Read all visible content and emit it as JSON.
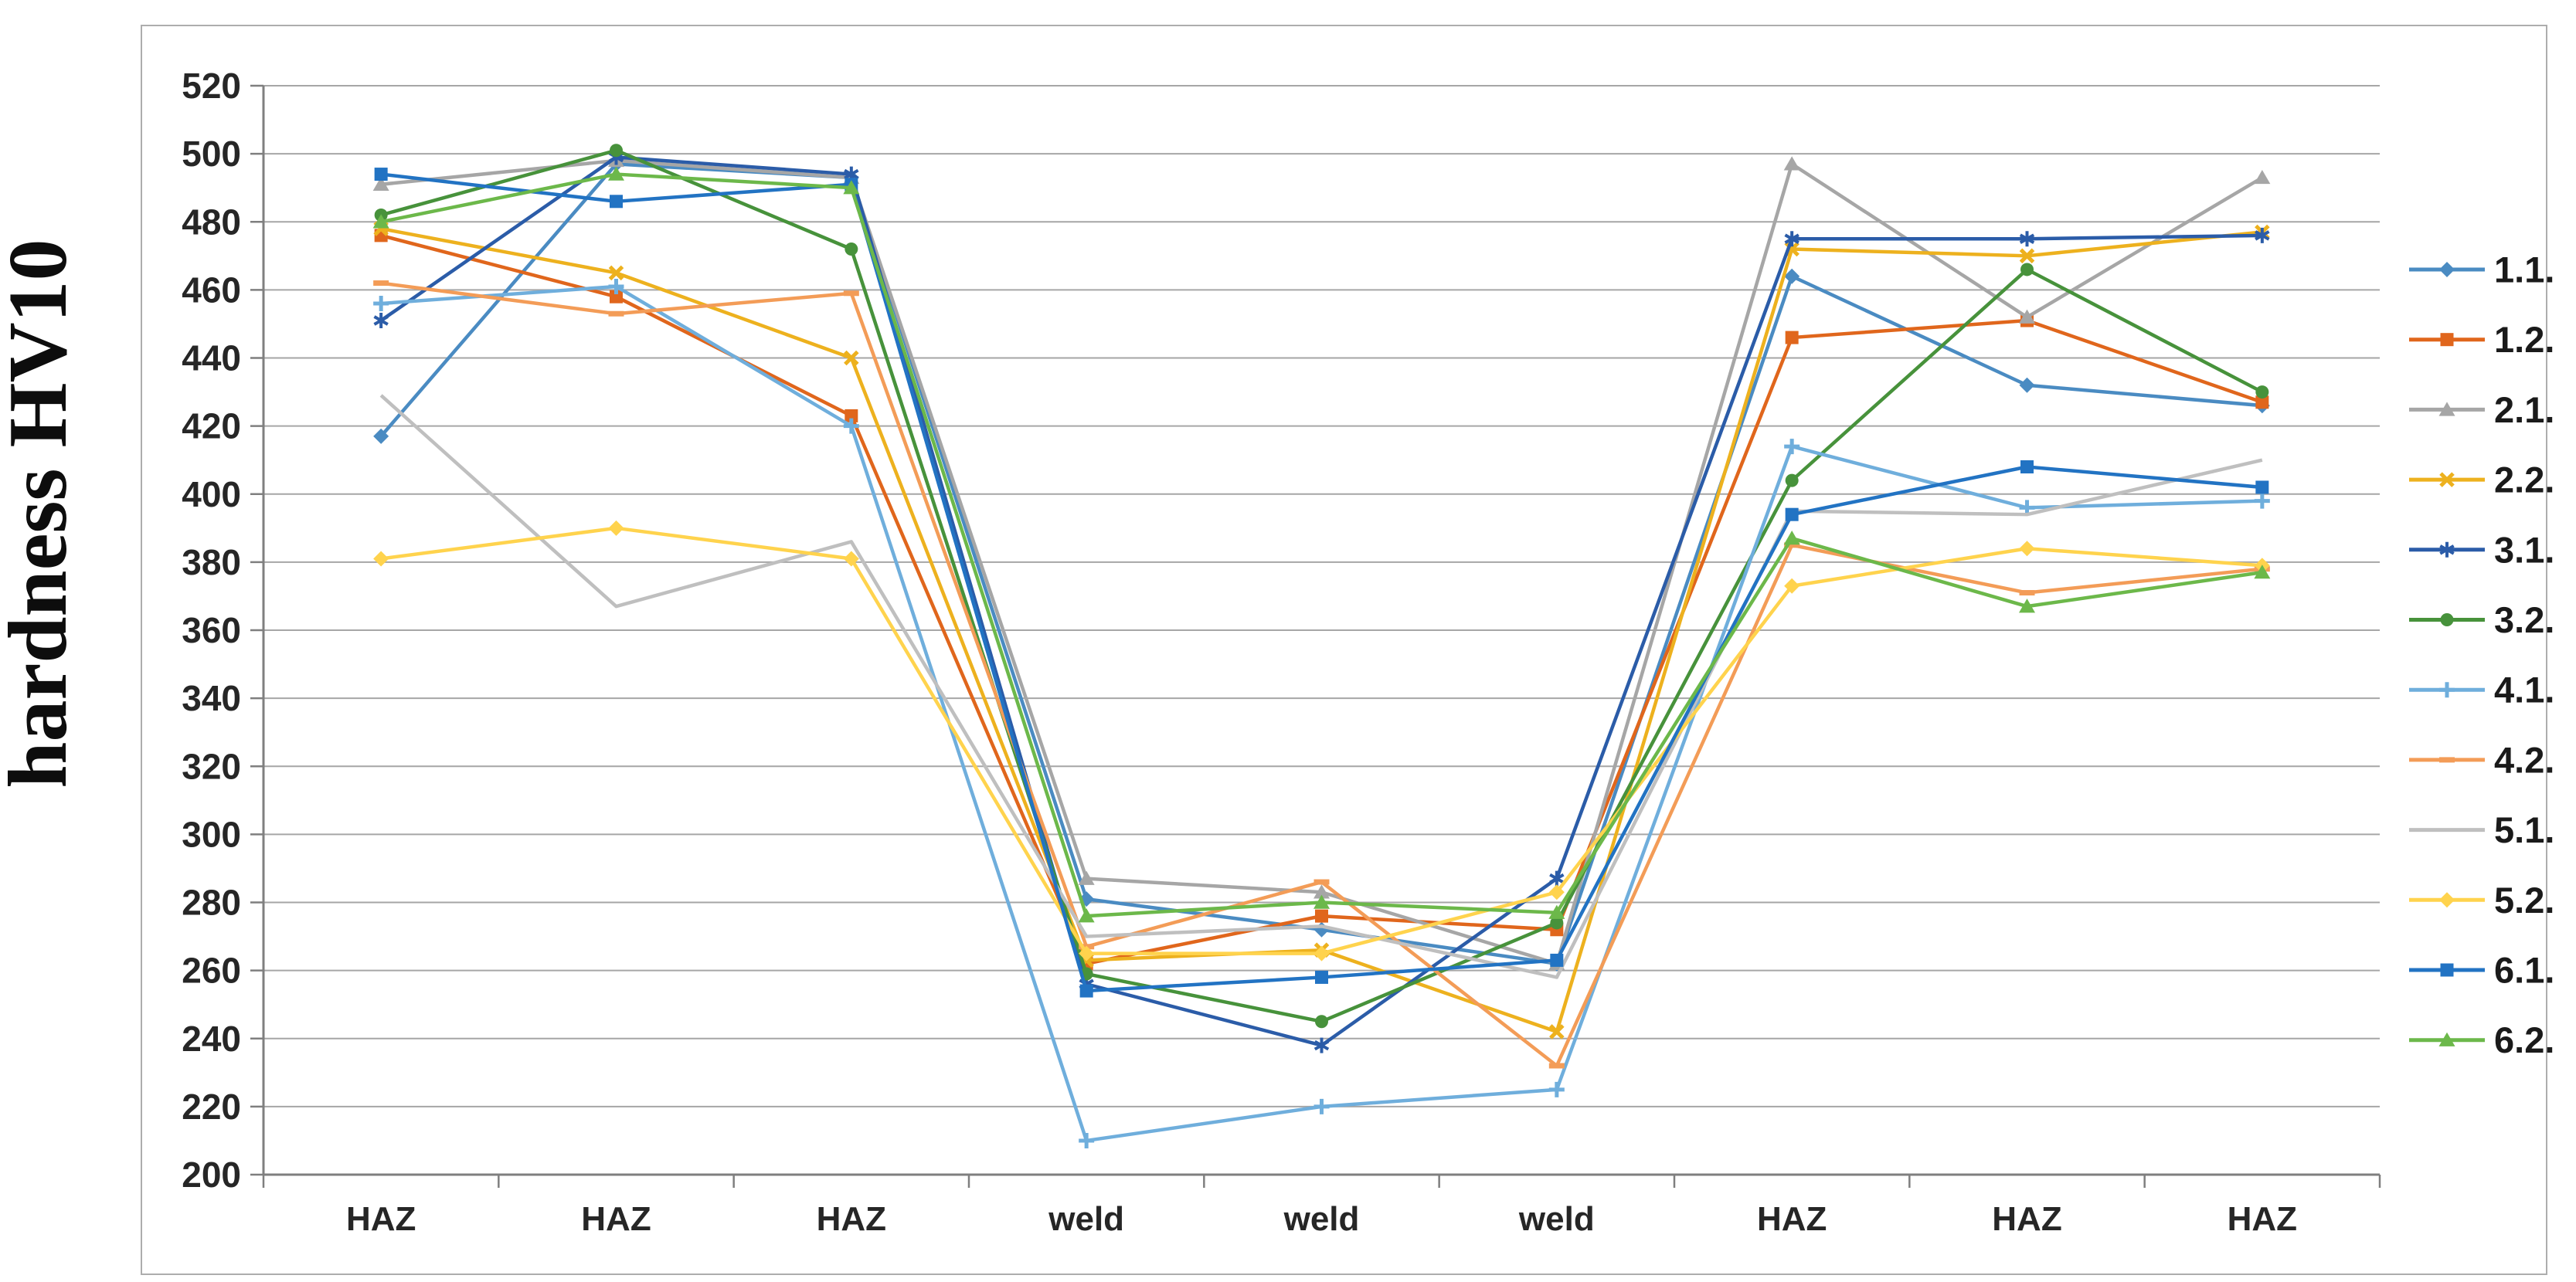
{
  "chart_data": {
    "type": "line",
    "title": "",
    "xlabel": "",
    "ylabel": "hardness HV10",
    "ylim": [
      200,
      520
    ],
    "ytick_step": 20,
    "ytick_labels": [
      "520",
      "500",
      "480",
      "460",
      "440",
      "420",
      "400",
      "380",
      "360",
      "340",
      "320",
      "300",
      "280",
      "260",
      "240",
      "220",
      "200"
    ],
    "categories": [
      "HAZ",
      "HAZ",
      "HAZ",
      "weld",
      "weld",
      "weld",
      "HAZ",
      "HAZ",
      "HAZ"
    ],
    "grid": "horizontal",
    "legend_position": "right",
    "plot_border_color": "#ADADAD",
    "gridline_color": "#A6A6A6",
    "axis_color": "#7F7F7F",
    "series": [
      {
        "name": "1.1.",
        "color": "#4A8BC2",
        "marker": "diamond",
        "values": [
          417,
          497,
          493,
          281,
          272,
          262,
          464,
          432,
          426
        ]
      },
      {
        "name": "1.2.",
        "color": "#E0661C",
        "marker": "square",
        "values": [
          476,
          458,
          423,
          262,
          276,
          272,
          446,
          451,
          427
        ]
      },
      {
        "name": "2.1.",
        "color": "#A6A6A6",
        "marker": "triangle",
        "values": [
          491,
          498,
          493,
          287,
          283,
          262,
          497,
          452,
          493
        ]
      },
      {
        "name": "2.2.",
        "color": "#EDB11E",
        "marker": "x",
        "values": [
          478,
          465,
          440,
          263,
          266,
          242,
          472,
          470,
          477
        ]
      },
      {
        "name": "3.1.",
        "color": "#2B5CA8",
        "marker": "asterisk",
        "values": [
          451,
          499,
          494,
          256,
          238,
          287,
          475,
          475,
          476
        ]
      },
      {
        "name": "3.2.",
        "color": "#47923B",
        "marker": "circle",
        "values": [
          482,
          501,
          472,
          259,
          245,
          274,
          404,
          466,
          430
        ]
      },
      {
        "name": "4.1.",
        "color": "#6FAEDC",
        "marker": "plus",
        "values": [
          456,
          461,
          420,
          210,
          220,
          225,
          414,
          396,
          398
        ]
      },
      {
        "name": "4.2.",
        "color": "#F39C57",
        "marker": "dash",
        "values": [
          462,
          453,
          459,
          267,
          286,
          232,
          385,
          371,
          378
        ]
      },
      {
        "name": "5.1.",
        "color": "#BFBFBF",
        "marker": "none",
        "values": [
          429,
          367,
          386,
          270,
          273,
          258,
          395,
          394,
          410
        ]
      },
      {
        "name": "5.2.",
        "color": "#FFD34D",
        "marker": "diamond",
        "values": [
          381,
          390,
          381,
          265,
          265,
          283,
          373,
          384,
          379
        ]
      },
      {
        "name": "6.1.",
        "color": "#2273C3",
        "marker": "square",
        "values": [
          494,
          486,
          491,
          254,
          258,
          263,
          394,
          408,
          402
        ]
      },
      {
        "name": "6.2.",
        "color": "#6CB84A",
        "marker": "triangle",
        "values": [
          480,
          494,
          490,
          276,
          280,
          277,
          387,
          367,
          377
        ]
      }
    ]
  }
}
